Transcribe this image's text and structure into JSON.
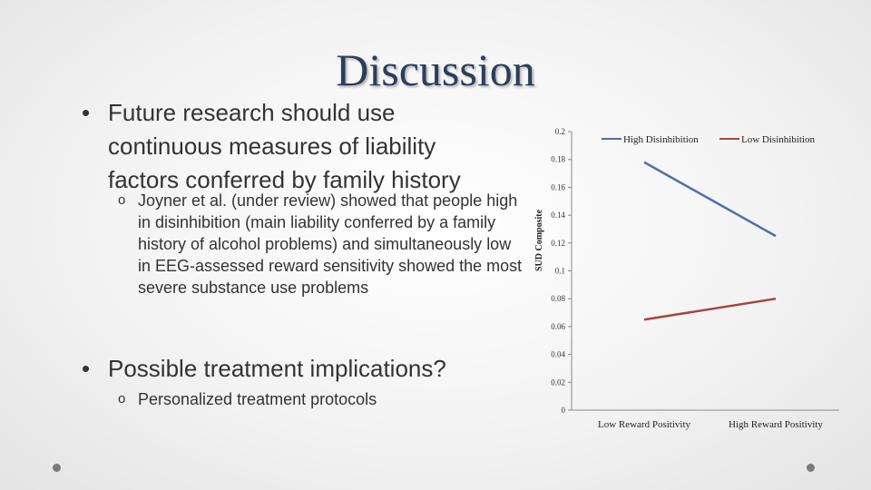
{
  "title": "Discussion",
  "bullets": [
    {
      "text": "Future research should use continuous measures of liability factors conferred by family history",
      "subs": [
        "Joyner et al. (under review) showed that people high in disinhibition (main liability conferred by a family history of alcohol problems) and simultaneously low in EEG-assessed reward sensitivity showed the most severe substance use problems"
      ]
    },
    {
      "text": "Possible treatment implications?",
      "subs": [
        "Personalized treatment protocols"
      ]
    }
  ],
  "bullet_glyph": "•",
  "sub_glyph": "o",
  "chart_data": {
    "type": "line",
    "categories": [
      "Low Reward Positivity",
      "High Reward Positivity"
    ],
    "series": [
      {
        "name": "High Disinhibition",
        "values": [
          0.178,
          0.125
        ],
        "color": "#4f6fa7"
      },
      {
        "name": "Low Disinhibition",
        "values": [
          0.065,
          0.08
        ],
        "color": "#a9443f"
      }
    ],
    "ylabel": "SUD Composite",
    "ylim": [
      0,
      0.2
    ],
    "yticks": [
      "0",
      "0.02",
      "0.04",
      "0.06",
      "0.08",
      "0.1",
      "0.12",
      "0.14",
      "0.16",
      "0.18",
      "0.2"
    ],
    "legend_position": "top"
  }
}
